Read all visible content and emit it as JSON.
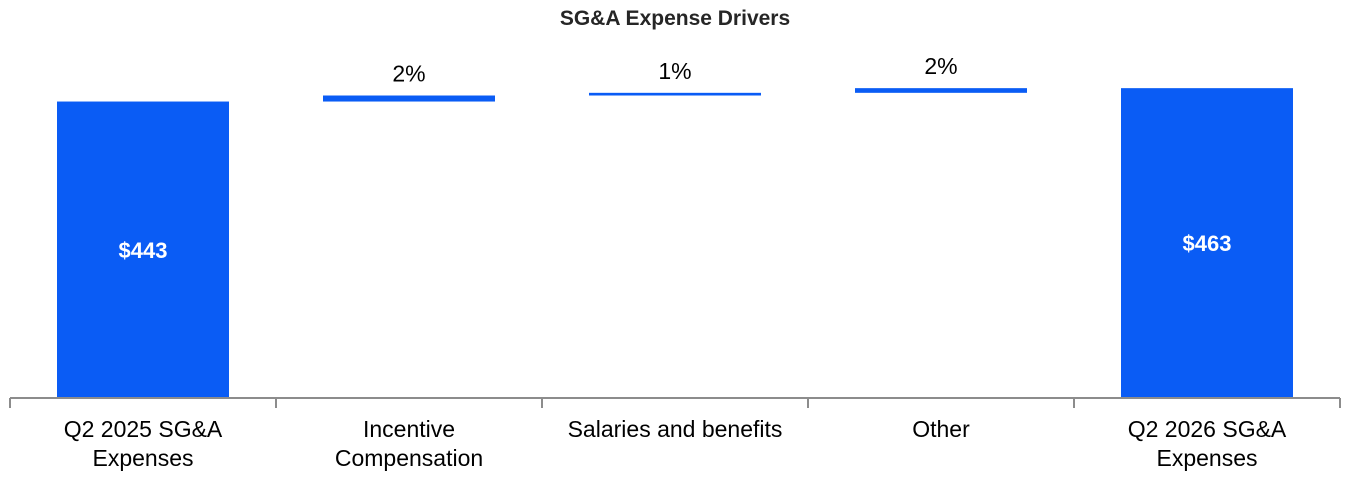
{
  "chart_data": {
    "type": "bar",
    "subtype": "waterfall",
    "title": "SG&A Expense Drivers",
    "xlabel": "",
    "ylabel": "",
    "categories": [
      [
        "Q2 2025 SG&A",
        "Expenses"
      ],
      [
        "Incentive",
        "Compensation"
      ],
      [
        "Salaries and benefits"
      ],
      [
        "Other"
      ],
      [
        "Q2 2026 SG&A",
        "Expenses"
      ]
    ],
    "values": [
      443,
      9,
      4,
      7,
      463
    ],
    "kinds": [
      "total",
      "delta",
      "delta",
      "delta",
      "total"
    ],
    "data_labels": [
      "$443",
      "2%",
      "1%",
      "2%",
      "$463"
    ],
    "ylim": [
      0,
      520
    ],
    "grid": false,
    "legend": "none",
    "colors": {
      "bar": "#0A5CF5",
      "axis": "#8C8C8C"
    }
  }
}
